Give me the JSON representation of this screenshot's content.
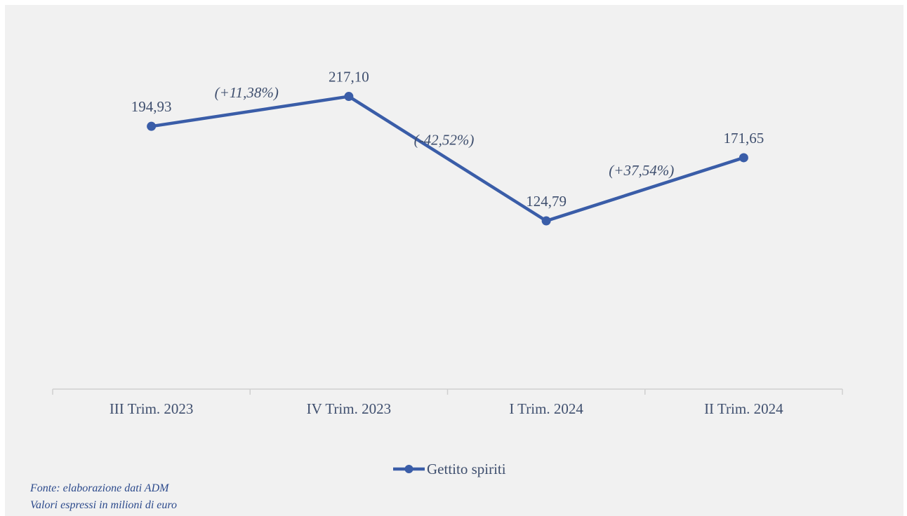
{
  "chart_data": {
    "type": "line",
    "categories": [
      "III Trim. 2023",
      "IV Trim. 2023",
      "I Trim. 2024",
      "II Trim. 2024"
    ],
    "series": [
      {
        "name": "Gettito spiriti",
        "values": [
          194.93,
          217.1,
          124.79,
          171.65
        ],
        "color": "#3a5da8"
      }
    ],
    "data_labels": [
      "194,93",
      "217,10",
      "124,79",
      "171,65"
    ],
    "annotations": [
      "(+11,38%)",
      "(-42,52%)",
      "(+37,54%)"
    ],
    "ylim": [
      0,
      285
    ],
    "y_axis_visible": false,
    "grid": false,
    "legend_position": "bottom"
  },
  "footer": {
    "source": "Fonte: elaborazione dati ADM",
    "units": "Valori espressi in milioni di euro"
  },
  "colors": {
    "line": "#3a5da8",
    "text": "#3f4f6e",
    "note": "#2c4a8c",
    "axis": "#cfcfcf",
    "background": "#f1f1f1"
  }
}
